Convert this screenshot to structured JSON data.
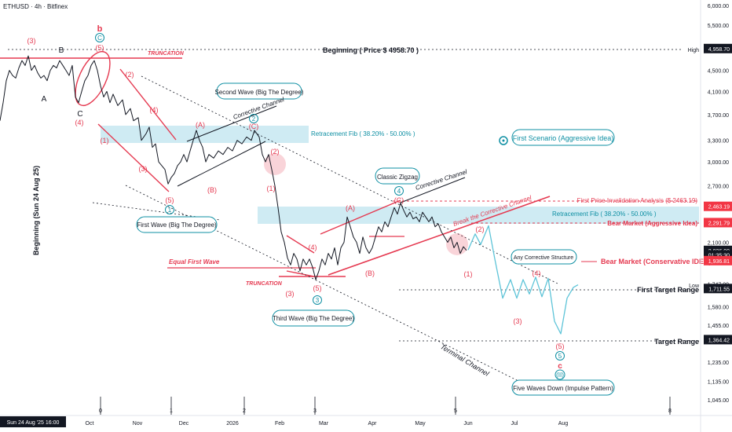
{
  "header": {
    "symbol_label": "ETHUSD · 4h · Bitfinex"
  },
  "chart_data": {
    "type": "line",
    "price_axis": {
      "ticks": [
        "6,000.00",
        "5,500.00",
        "5,000.00",
        "4,500.00",
        "4,100.00",
        "3,700.00",
        "3,300.00",
        "3,000.00",
        "2,700.00",
        "2,450.00",
        "2,100.00",
        "1,747.00",
        "1,580.00",
        "1,455.00",
        "1,235.00",
        "1,135.00",
        "1,045.00"
      ],
      "tick_values": [
        6000,
        5500,
        5000,
        4500,
        4100,
        3700,
        3300,
        3000,
        2700,
        2450,
        2100,
        1747,
        1580,
        1455,
        1235,
        1135,
        1045
      ],
      "log_scale": true,
      "markers": [
        {
          "text": "4,958.70",
          "value": 4958.7,
          "bg": "#131722",
          "fg": "#ffffff"
        },
        {
          "text": "2,463.19",
          "value": 2463.19,
          "bg": "#f23645",
          "fg": "#ffffff"
        },
        {
          "text": "2,291.79",
          "value": 2291.79,
          "bg": "#f23645",
          "fg": "#ffffff"
        },
        {
          "text": "2,026.00",
          "value": 2026,
          "bg": "#131722",
          "fg": "#ffffff"
        },
        {
          "text": "01:35:30",
          "value": 1985,
          "bg": "#131722",
          "fg": "#ffffff"
        },
        {
          "text": "1,936.81",
          "value": 1936.81,
          "bg": "#f23645",
          "fg": "#ffffff"
        },
        {
          "text": "1,711.55",
          "value": 1711.55,
          "bg": "#131722",
          "fg": "#ffffff"
        },
        {
          "text": "1,364.42",
          "value": 1364.42,
          "bg": "#131722",
          "fg": "#ffffff"
        }
      ],
      "high_label": "High",
      "low_label": "Low"
    },
    "time_axis": {
      "labels": [
        "Oct",
        "Nov",
        "Dec",
        "2026",
        "Feb",
        "Mar",
        "Apr",
        "May",
        "Jun",
        "Jul",
        "Aug"
      ],
      "current_label": "Sun 24 Aug '25   16:00",
      "cycle_marks": [
        "0",
        "1",
        "2",
        "3",
        "5",
        "8"
      ]
    },
    "series": [
      {
        "values": [
          [
            0,
            3600
          ],
          [
            4,
            3900
          ],
          [
            8,
            4300
          ],
          [
            12,
            4500
          ],
          [
            16,
            4400
          ],
          [
            20,
            4350
          ],
          [
            24,
            4550
          ],
          [
            28,
            4700
          ],
          [
            32,
            4600
          ],
          [
            36,
            4800
          ],
          [
            40,
            4500
          ],
          [
            44,
            4600
          ],
          [
            48,
            4450
          ],
          [
            52,
            4350
          ],
          [
            56,
            4400
          ],
          [
            60,
            4300
          ],
          [
            64,
            4500
          ],
          [
            68,
            4600
          ],
          [
            72,
            4550
          ],
          [
            76,
            4700
          ],
          [
            80,
            4600
          ],
          [
            84,
            4500
          ],
          [
            88,
            4400
          ],
          [
            92,
            4600
          ],
          [
            96,
            4000
          ],
          [
            100,
            3900
          ],
          [
            104,
            4100
          ],
          [
            108,
            4300
          ],
          [
            112,
            4400
          ],
          [
            116,
            4600
          ],
          [
            120,
            4700
          ],
          [
            124,
            4500
          ],
          [
            128,
            4200
          ],
          [
            132,
            4000
          ],
          [
            136,
            4100
          ],
          [
            140,
            3900
          ],
          [
            144,
            4050
          ],
          [
            150,
            3850
          ],
          [
            156,
            3950
          ],
          [
            160,
            3700
          ],
          [
            166,
            3800
          ],
          [
            170,
            3600
          ],
          [
            176,
            3650
          ],
          [
            180,
            3300
          ],
          [
            186,
            3400
          ],
          [
            190,
            3500
          ],
          [
            194,
            3200
          ],
          [
            198,
            3250
          ],
          [
            202,
            3000
          ],
          [
            206,
            2950
          ],
          [
            210,
            2900
          ],
          [
            214,
            2720
          ],
          [
            218,
            2800
          ],
          [
            222,
            2850
          ],
          [
            226,
            2950
          ],
          [
            230,
            3000
          ],
          [
            234,
            3100
          ],
          [
            238,
            3000
          ],
          [
            242,
            3150
          ],
          [
            246,
            3300
          ],
          [
            250,
            3450
          ],
          [
            254,
            3300
          ],
          [
            258,
            3200
          ],
          [
            262,
            3000
          ],
          [
            266,
            3100
          ],
          [
            272,
            3050
          ],
          [
            278,
            3150
          ],
          [
            284,
            3100
          ],
          [
            290,
            3200
          ],
          [
            296,
            3150
          ],
          [
            302,
            3300
          ],
          [
            308,
            3250
          ],
          [
            314,
            3350
          ],
          [
            320,
            3300
          ],
          [
            324,
            3450
          ],
          [
            330,
            3350
          ],
          [
            334,
            3100
          ],
          [
            338,
            3000
          ],
          [
            342,
            3100
          ],
          [
            346,
            2900
          ],
          [
            350,
            2700
          ],
          [
            354,
            2450
          ],
          [
            358,
            2200
          ],
          [
            362,
            2100
          ],
          [
            366,
            1960
          ],
          [
            370,
            1900
          ],
          [
            374,
            2000
          ],
          [
            378,
            1950
          ],
          [
            382,
            1850
          ],
          [
            386,
            1950
          ],
          [
            390,
            1900
          ],
          [
            394,
            1950
          ],
          [
            398,
            1880
          ],
          [
            402,
            1780
          ],
          [
            406,
            1850
          ],
          [
            410,
            1950
          ],
          [
            414,
            1900
          ],
          [
            418,
            2000
          ],
          [
            422,
            1950
          ],
          [
            426,
            2050
          ],
          [
            430,
            1900
          ],
          [
            434,
            2050
          ],
          [
            438,
            2100
          ],
          [
            442,
            2350
          ],
          [
            446,
            2250
          ],
          [
            450,
            2150
          ],
          [
            454,
            2100
          ],
          [
            458,
            2000
          ],
          [
            462,
            2150
          ],
          [
            466,
            2050
          ],
          [
            470,
            2000
          ],
          [
            474,
            2050
          ],
          [
            478,
            2150
          ],
          [
            482,
            2250
          ],
          [
            486,
            2200
          ],
          [
            490,
            2300
          ],
          [
            494,
            2250
          ],
          [
            498,
            2350
          ],
          [
            502,
            2450
          ],
          [
            506,
            2380
          ],
          [
            510,
            2500
          ],
          [
            514,
            2420
          ],
          [
            518,
            2350
          ],
          [
            522,
            2400
          ],
          [
            526,
            2330
          ],
          [
            530,
            2350
          ],
          [
            534,
            2300
          ],
          [
            538,
            2400
          ],
          [
            542,
            2350
          ],
          [
            546,
            2300
          ],
          [
            550,
            2350
          ],
          [
            554,
            2250
          ],
          [
            558,
            2280
          ],
          [
            562,
            2200
          ],
          [
            566,
            2150
          ],
          [
            570,
            2100
          ],
          [
            574,
            2150
          ],
          [
            578,
            2050
          ],
          [
            582,
            2100
          ],
          [
            586,
            2000
          ],
          [
            590,
            2060
          ],
          [
            594,
            2026
          ]
        ],
        "color": "#131722"
      },
      {
        "values": [
          [
            596,
            2030
          ],
          [
            605,
            2180
          ],
          [
            612,
            2080
          ],
          [
            622,
            2260
          ],
          [
            630,
            1950
          ],
          [
            640,
            1640
          ],
          [
            650,
            1780
          ],
          [
            658,
            1640
          ],
          [
            666,
            1780
          ],
          [
            674,
            1670
          ],
          [
            682,
            1800
          ],
          [
            690,
            1650
          ],
          [
            698,
            1790
          ],
          [
            706,
            1480
          ],
          [
            714,
            1400
          ],
          [
            722,
            1640
          ],
          [
            730,
            1720
          ],
          [
            736,
            1740
          ]
        ],
        "color": "#5ec4d8"
      }
    ],
    "annotations": [
      {
        "text": "Beginning ( Price $ 4958.70 )",
        "color": "#131722"
      },
      {
        "text": "TRUNCATION",
        "color": "#e53950"
      },
      {
        "text": "TRUNCATION",
        "color": "#e53950"
      },
      {
        "text": "Second Wave (Big The Degree)",
        "color": "#0e8fa3"
      },
      {
        "text": "Corrective Channel",
        "color": "#131722"
      },
      {
        "text": "Retracement Fib ( 38.20% - 50.00% )",
        "color": "#0e8fa3"
      },
      {
        "text": "First Scenario (Aggressive Idea)",
        "color": "#0e8fa3"
      },
      {
        "text": "Classic Zigzag",
        "color": "#0e8fa3"
      },
      {
        "text": "Corrective Channel",
        "color": "#131722"
      },
      {
        "text": "Break the Corrective Channel",
        "color": "#e53950"
      },
      {
        "text": "Retracement Fib ( 38.20% - 50.00% )",
        "color": "#0e8fa3"
      },
      {
        "text": "First Price Invalidation Analysis ($ 2463.19)",
        "color": "#e53950"
      },
      {
        "text": "Bear Market (Aggressive Idea)",
        "color": "#e53950"
      },
      {
        "text": "Any Corrective Structure",
        "color": "#0e8fa3"
      },
      {
        "text": "Bear Market (Conservative IDEA)",
        "color": "#e53950"
      },
      {
        "text": "First Target Range",
        "color": "#131722"
      },
      {
        "text": "Target Range",
        "color": "#131722"
      },
      {
        "text": "First Wave (Big The Degree)",
        "color": "#0e8fa3"
      },
      {
        "text": "Equal First Wave",
        "color": "#e53950"
      },
      {
        "text": "Third Wave (Big The Degree)",
        "color": "#0e8fa3"
      },
      {
        "text": "Terminal Channel",
        "color": "#131722"
      },
      {
        "text": "Five Waves Down (Impulse Pattern)",
        "color": "#0e8fa3"
      },
      {
        "text": "Beginning (Sun 24 Aug 25)",
        "color": "#131722"
      }
    ],
    "wave_labels": [
      {
        "text": "(3)",
        "color": "#e53950"
      },
      {
        "text": "B",
        "color": "#131722"
      },
      {
        "text": "A",
        "color": "#131722"
      },
      {
        "text": "C",
        "color": "#131722"
      },
      {
        "text": "(4)",
        "color": "#e53950"
      },
      {
        "text": "b",
        "color": "#e53950"
      },
      {
        "text": "C",
        "color": "#0e8fa3"
      },
      {
        "text": "(5)",
        "color": "#e53950"
      },
      {
        "text": "(1)",
        "color": "#e53950"
      },
      {
        "text": "(2)",
        "color": "#e53950"
      },
      {
        "text": "(4)",
        "color": "#e53950"
      },
      {
        "text": "(3)",
        "color": "#e53950"
      },
      {
        "text": "(5)",
        "color": "#e53950"
      },
      {
        "text": "1",
        "color": "#0e8fa3"
      },
      {
        "text": "(A)",
        "color": "#e53950"
      },
      {
        "text": "(B)",
        "color": "#e53950"
      },
      {
        "text": "(C)",
        "color": "#e53950"
      },
      {
        "text": "2",
        "color": "#0e8fa3"
      },
      {
        "text": "(2)",
        "color": "#e53950"
      },
      {
        "text": "(1)",
        "color": "#e53950"
      },
      {
        "text": "(4)",
        "color": "#e53950"
      },
      {
        "text": "(3)",
        "color": "#e53950"
      },
      {
        "text": "(5)",
        "color": "#e53950"
      },
      {
        "text": "3",
        "color": "#0e8fa3"
      },
      {
        "text": "(A)",
        "color": "#e53950"
      },
      {
        "text": "(B)",
        "color": "#e53950"
      },
      {
        "text": "(C)",
        "color": "#e53950"
      },
      {
        "text": "4",
        "color": "#0e8fa3"
      },
      {
        "text": "(1)",
        "color": "#e53950"
      },
      {
        "text": "(2)",
        "color": "#e53950"
      },
      {
        "text": "(4)",
        "color": "#e53950"
      },
      {
        "text": "(3)",
        "color": "#e53950"
      },
      {
        "text": "(5)",
        "color": "#e53950"
      },
      {
        "text": "5",
        "color": "#0e8fa3"
      },
      {
        "text": "c",
        "color": "#e53950"
      },
      {
        "text": "(II)",
        "color": "#0e8fa3"
      }
    ],
    "colors": {
      "accent_red": "#e53950",
      "accent_teal": "#0e8fa3",
      "fib_zone": "#bfe4ef",
      "grid": "#f0f3fa"
    }
  }
}
